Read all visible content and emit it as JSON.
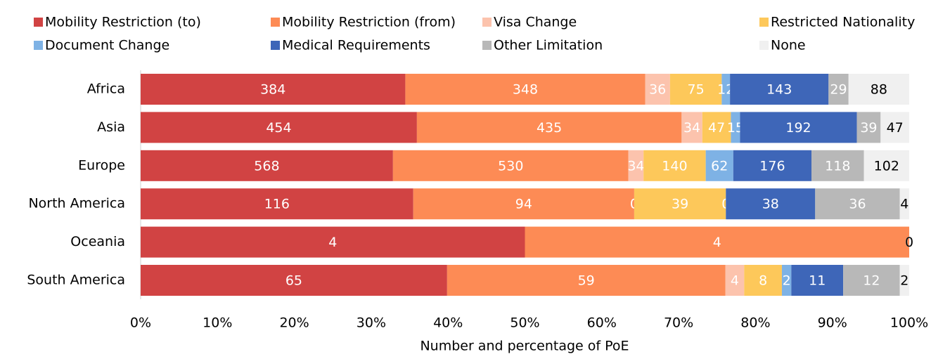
{
  "chart_data": {
    "type": "bar",
    "orientation": "horizontal",
    "stacked": "percent",
    "x_axis_label": "Number and percentage of PoE",
    "categories": [
      "Africa",
      "Asia",
      "Europe",
      "North America",
      "Oceania",
      "South America"
    ],
    "series": [
      {
        "name": "Mobility Restriction (to)",
        "color": "#d14343",
        "values": [
          384,
          454,
          568,
          116,
          4,
          65
        ]
      },
      {
        "name": "Mobility Restriction (from)",
        "color": "#fd8b55",
        "values": [
          348,
          435,
          530,
          94,
          4,
          59
        ]
      },
      {
        "name": "Visa Change",
        "color": "#fcc3ad",
        "values": [
          36,
          34,
          34,
          0,
          0,
          4
        ]
      },
      {
        "name": "Restricted Nationality",
        "color": "#fdc85a",
        "values": [
          75,
          47,
          140,
          39,
          0,
          8
        ]
      },
      {
        "name": "Document Change",
        "color": "#7eb2e5",
        "values": [
          12,
          15,
          62,
          0,
          0,
          2
        ]
      },
      {
        "name": "Medical Requirements",
        "color": "#3e66b8",
        "values": [
          143,
          192,
          176,
          38,
          0,
          11
        ]
      },
      {
        "name": "Other Limitation",
        "color": "#b8b8b8",
        "values": [
          29,
          39,
          118,
          36,
          0,
          12
        ]
      },
      {
        "name": "None",
        "color": "#f0f0f0",
        "values": [
          88,
          47,
          102,
          4,
          0,
          2
        ]
      }
    ],
    "xlim": [
      0,
      100
    ],
    "xticks": [
      {
        "value": 0,
        "label": "0%"
      },
      {
        "value": 10,
        "label": "10%"
      },
      {
        "value": 20,
        "label": "20%"
      },
      {
        "value": 30,
        "label": "30%"
      },
      {
        "value": 40,
        "label": "40%"
      },
      {
        "value": 50,
        "label": "50%"
      },
      {
        "value": 60,
        "label": "60%"
      },
      {
        "value": 70,
        "label": "70%"
      },
      {
        "value": 80,
        "label": "80%"
      },
      {
        "value": 90,
        "label": "90%"
      },
      {
        "value": 100,
        "label": "100%"
      }
    ],
    "legend": "top"
  }
}
